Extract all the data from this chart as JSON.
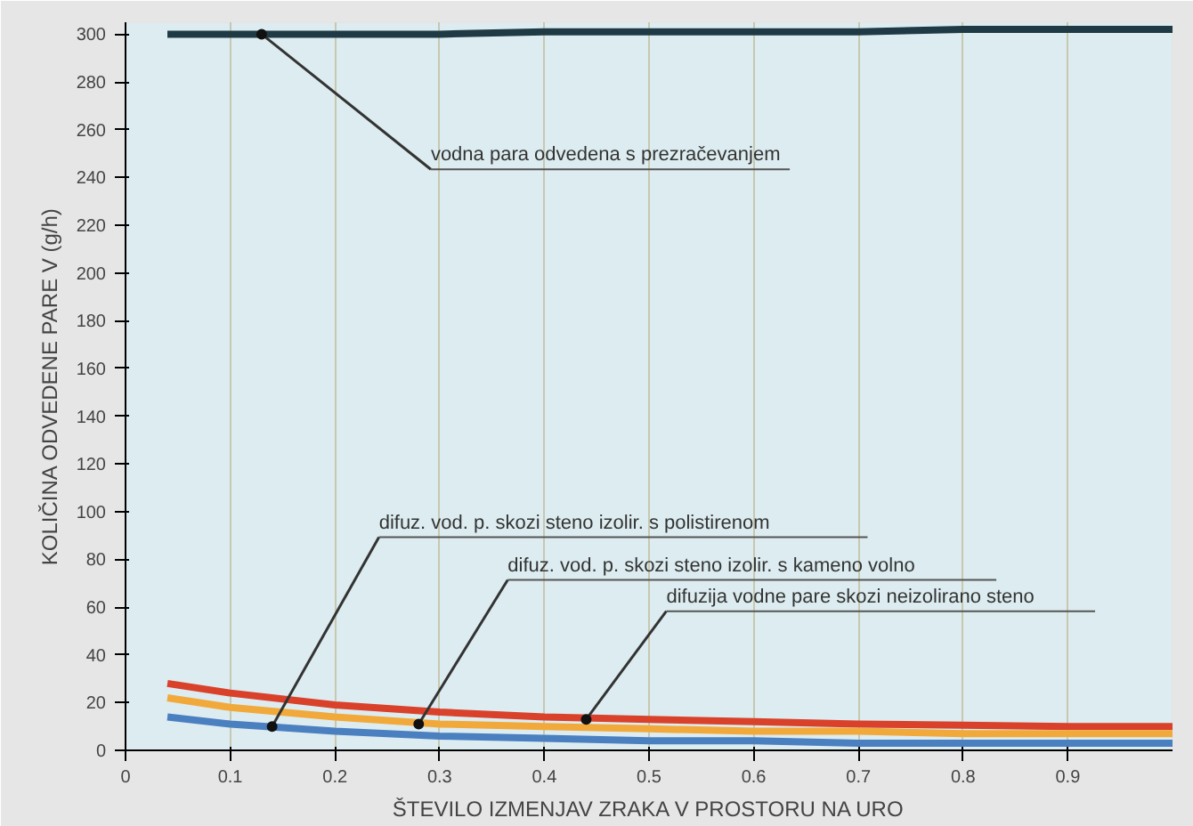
{
  "chart_data": {
    "type": "line",
    "xlabel": "ŠTEVILO IZMENJAV ZRAKA V PROSTORU NA URO",
    "ylabel": "KOLIČINA ODVEDENE PARE V (g/h)",
    "x": [
      0.04,
      0.1,
      0.2,
      0.3,
      0.4,
      0.5,
      0.6,
      0.7,
      0.8,
      0.9,
      1.0
    ],
    "series": [
      {
        "color": "#1f3a44",
        "values": [
          300,
          300,
          300,
          300,
          301,
          301,
          301,
          301,
          302,
          302,
          302
        ]
      },
      {
        "color": "#d9412a",
        "values": [
          28,
          24,
          19,
          16,
          14,
          13,
          12,
          11,
          10.5,
          10,
          10
        ]
      },
      {
        "color": "#f2a93b",
        "values": [
          22,
          18,
          14,
          11,
          10,
          9,
          8,
          8,
          7,
          7,
          7
        ]
      },
      {
        "color": "#4a7fc0",
        "values": [
          14,
          11,
          8,
          6,
          5,
          4,
          4,
          3,
          3,
          3,
          3
        ]
      }
    ],
    "xlim": [
      0,
      1.0
    ],
    "ylim": [
      0,
      305
    ],
    "xticks": [
      0,
      0.1,
      0.2,
      0.3,
      0.4,
      0.5,
      0.6,
      0.7,
      0.8,
      0.9
    ],
    "yticks": [
      0,
      20,
      40,
      60,
      80,
      100,
      120,
      140,
      160,
      180,
      200,
      220,
      240,
      260,
      280,
      300
    ],
    "grid": "x",
    "marker": "none",
    "line_style": "solid",
    "annotations": [
      {
        "text": "vodna para odvedena s prezračevanjem",
        "x": 0.13,
        "y": 300
      },
      {
        "text": "difuz. vod. p. skozi steno izolir. s polistirenom",
        "x": 0.14,
        "y": 10
      },
      {
        "text": "difuz. vod. p. skozi steno izolir. s kameno volno",
        "x": 0.28,
        "y": 11
      },
      {
        "text": "difuzija vodne pare skozi neizolirano steno",
        "x": 0.44,
        "y": 13
      }
    ]
  }
}
